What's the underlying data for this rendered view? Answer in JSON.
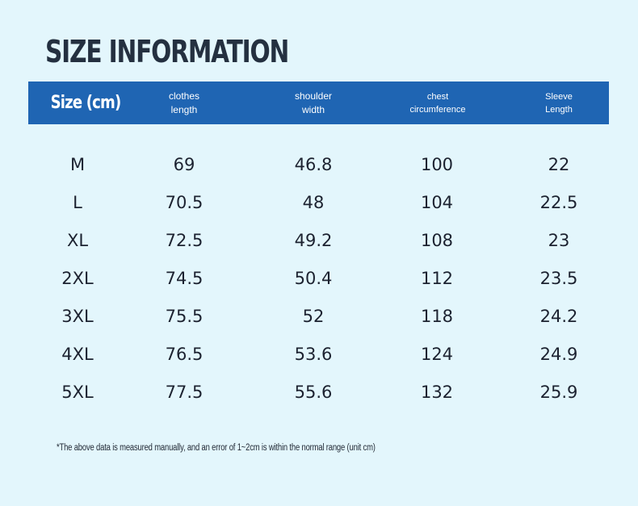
{
  "title": "SIZE INFORMATION",
  "table": {
    "headers": [
      {
        "lines": [
          "Size (cm)"
        ]
      },
      {
        "lines": [
          "clothes",
          "length"
        ]
      },
      {
        "lines": [
          "shoulder",
          "width"
        ]
      },
      {
        "lines": [
          "chest",
          "circumference"
        ]
      },
      {
        "lines": [
          "Sleeve",
          "Length"
        ]
      }
    ],
    "rows": [
      [
        "M",
        "69",
        "46.8",
        "100",
        "22"
      ],
      [
        "L",
        "70.5",
        "48",
        "104",
        "22.5"
      ],
      [
        "XL",
        "72.5",
        "49.2",
        "108",
        "23"
      ],
      [
        "2XL",
        "74.5",
        "50.4",
        "112",
        "23.5"
      ],
      [
        "3XL",
        "75.5",
        "52",
        "118",
        "24.2"
      ],
      [
        "4XL",
        "76.5",
        "53.6",
        "124",
        "24.9"
      ],
      [
        "5XL",
        "77.5",
        "55.6",
        "132",
        "25.9"
      ]
    ]
  },
  "note": "*The above data is measured manually, and an error of 1~2cm is within the normal range (unit cm)",
  "colors": {
    "background": "#e3f6fc",
    "header_bar": "#1f65b3",
    "text": "#1c2230"
  }
}
